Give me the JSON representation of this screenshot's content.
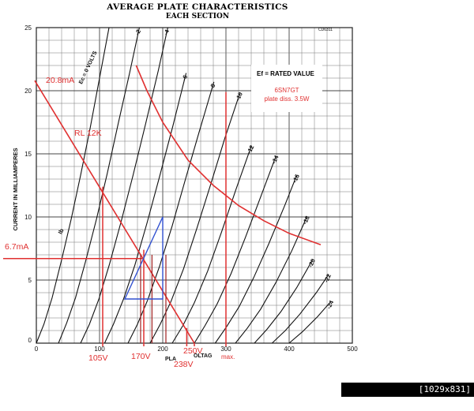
{
  "header": {
    "title": "AVERAGE PLATE CHARACTERISTICS",
    "subtitle": "EACH SECTION",
    "ref_code": "CD6311"
  },
  "legend_box": {
    "heading": "Ef = RATED VALUE",
    "tube": "6SN7GT",
    "dissipation": "plate diss. 3.5W"
  },
  "watermark": "[1029x831] https://upic.me/",
  "chart_data": {
    "type": "line",
    "title": "AVERAGE PLATE CHARACTERISTICS",
    "subtitle": "EACH SECTION",
    "xlabel": "PLATE VOLTAGE",
    "ylabel": "CURRENT IN MILLIAMPERES",
    "xlim": [
      0,
      500
    ],
    "ylim": [
      0,
      25
    ],
    "grid": true,
    "x_ticks": [
      0,
      100,
      200,
      300,
      400,
      500
    ],
    "y_ticks": [
      5,
      10,
      15,
      20,
      25
    ],
    "grid_label": "Ec = 0 VOLTS",
    "ib_label": "Ib",
    "series": [
      {
        "name": "0",
        "values": [
          [
            0,
            0
          ],
          [
            12,
            1.5
          ],
          [
            25,
            3.6
          ],
          [
            40,
            6.6
          ],
          [
            55,
            9.8
          ],
          [
            70,
            13.3
          ],
          [
            85,
            17
          ],
          [
            100,
            21
          ],
          [
            115,
            25
          ]
        ]
      },
      {
        "name": "-2",
        "values": [
          [
            35,
            0
          ],
          [
            48,
            1.6
          ],
          [
            62,
            3.6
          ],
          [
            78,
            6.5
          ],
          [
            95,
            9.8
          ],
          [
            112,
            13.4
          ],
          [
            130,
            17.5
          ],
          [
            148,
            21.5
          ],
          [
            163,
            25
          ]
        ]
      },
      {
        "name": "-4",
        "values": [
          [
            70,
            0
          ],
          [
            84,
            1.5
          ],
          [
            99,
            3.5
          ],
          [
            116,
            6.3
          ],
          [
            134,
            9.6
          ],
          [
            153,
            13.3
          ],
          [
            173,
            17.4
          ],
          [
            193,
            21.6
          ],
          [
            208,
            25
          ]
        ]
      },
      {
        "name": "-6",
        "values": [
          [
            108,
            0
          ],
          [
            122,
            1.5
          ],
          [
            138,
            3.5
          ],
          [
            156,
            6.2
          ],
          [
            175,
            9.5
          ],
          [
            195,
            13.2
          ],
          [
            216,
            17.2
          ],
          [
            237,
            21.4
          ]
        ]
      },
      {
        "name": "-8",
        "values": [
          [
            145,
            0
          ],
          [
            160,
            1.5
          ],
          [
            176,
            3.4
          ],
          [
            195,
            6.1
          ],
          [
            215,
            9.3
          ],
          [
            236,
            13
          ],
          [
            258,
            16.8
          ],
          [
            281,
            20.7
          ]
        ]
      },
      {
        "name": "-10",
        "values": [
          [
            180,
            0
          ],
          [
            196,
            1.5
          ],
          [
            213,
            3.3
          ],
          [
            233,
            5.9
          ],
          [
            254,
            9.1
          ],
          [
            276,
            12.6
          ],
          [
            298,
            16.2
          ],
          [
            322,
            19.8
          ]
        ]
      },
      {
        "name": "-12",
        "values": [
          [
            215,
            0
          ],
          [
            232,
            1.4
          ],
          [
            250,
            3.2
          ],
          [
            271,
            5.7
          ],
          [
            293,
            8.8
          ],
          [
            316,
            12.2
          ],
          [
            340,
            15.6
          ]
        ]
      },
      {
        "name": "-14",
        "values": [
          [
            250,
            0
          ],
          [
            267,
            1.4
          ],
          [
            286,
            3.1
          ],
          [
            308,
            5.5
          ],
          [
            331,
            8.4
          ],
          [
            355,
            11.6
          ],
          [
            379,
            14.8
          ]
        ]
      },
      {
        "name": "-16",
        "values": [
          [
            283,
            0
          ],
          [
            301,
            1.3
          ],
          [
            321,
            2.9
          ],
          [
            344,
            5.2
          ],
          [
            368,
            7.9
          ],
          [
            393,
            10.9
          ],
          [
            412,
            13.3
          ]
        ]
      },
      {
        "name": "-18",
        "values": [
          [
            315,
            0
          ],
          [
            334,
            1.2
          ],
          [
            355,
            2.7
          ],
          [
            379,
            4.8
          ],
          [
            404,
            7.3
          ],
          [
            428,
            10
          ]
        ]
      },
      {
        "name": "-20",
        "values": [
          [
            345,
            0
          ],
          [
            365,
            1.1
          ],
          [
            387,
            2.5
          ],
          [
            412,
            4.4
          ],
          [
            437,
            6.6
          ]
        ]
      },
      {
        "name": "-22",
        "values": [
          [
            373,
            0
          ],
          [
            394,
            1
          ],
          [
            417,
            2.3
          ],
          [
            443,
            4
          ],
          [
            462,
            5.4
          ]
        ]
      },
      {
        "name": "-24",
        "values": [
          [
            400,
            0
          ],
          [
            421,
            0.9
          ],
          [
            445,
            2.1
          ],
          [
            466,
            3.3
          ]
        ]
      }
    ],
    "annotations": {
      "load_line_label": "RL 12K",
      "load_line": [
        [
          0,
          20.8
        ],
        [
          250,
          0
        ]
      ],
      "dissipation_curve": [
        [
          158,
          22
        ],
        [
          175,
          20
        ],
        [
          200,
          17.5
        ],
        [
          240,
          14.5
        ],
        [
          280,
          12.5
        ],
        [
          320,
          10.9
        ],
        [
          360,
          9.7
        ],
        [
          400,
          8.7
        ],
        [
          450,
          7.8
        ]
      ],
      "i_max_label": "20.8mA",
      "i_q_label": "6.7mA",
      "i_q": 6.7,
      "v_labels": [
        "105V",
        "170V",
        "250V",
        "238V",
        "max."
      ],
      "v_marks": [
        105,
        170,
        238,
        250,
        300
      ],
      "triangle": [
        [
          140,
          3.5
        ],
        [
          200,
          10
        ],
        [
          200,
          3.5
        ]
      ],
      "plate_voltage_fragment": "PLA",
      "plate_voltage_fragment2": "OLTAG"
    }
  }
}
